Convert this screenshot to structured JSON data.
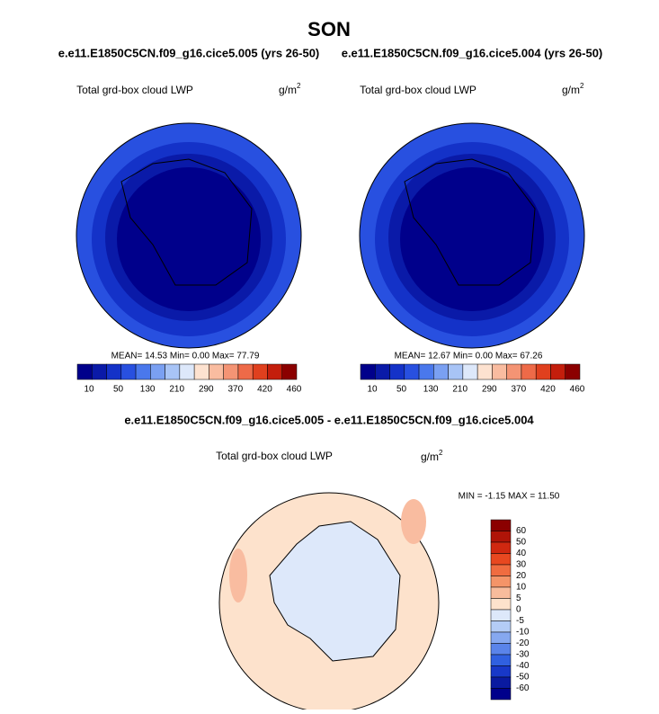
{
  "title": "SON",
  "panels": [
    {
      "case": "e.e11.E1850C5CN.f09_g16.cice5.005 (yrs 26-50)",
      "variable": "Total grd-box cloud LWP",
      "units": "g/m",
      "units_exponent": "2",
      "stats": "MEAN=  14.53  Min=   0.00  Max=  77.79",
      "colorbar_labels": [
        "10",
        "50",
        "130",
        "210",
        "290",
        "370",
        "420",
        "460"
      ]
    },
    {
      "case": "e.e11.E1850C5CN.f09_g16.cice5.004 (yrs 26-50)",
      "variable": "Total grd-box cloud LWP",
      "units": "g/m",
      "units_exponent": "2",
      "stats": "MEAN=  12.67  Min=   0.00  Max=  67.26",
      "colorbar_labels": [
        "10",
        "50",
        "130",
        "210",
        "290",
        "370",
        "420",
        "460"
      ]
    }
  ],
  "colorbar_colors": [
    "#00008b",
    "#0a1aa8",
    "#1432c8",
    "#2850e0",
    "#4a78ec",
    "#7aa0f2",
    "#a8c4f6",
    "#dde8fa",
    "#fde2d0",
    "#f9bca0",
    "#f49474",
    "#ee6a48",
    "#e0401e",
    "#c41e0c",
    "#8b0000"
  ],
  "difference": {
    "title": "e.e11.E1850C5CN.f09_g16.cice5.005 - e.e11.E1850C5CN.f09_g16.cice5.004",
    "variable": "Total grd-box cloud LWP",
    "units": "g/m",
    "units_exponent": "2",
    "stats": "MIN =  -1.15 MAX =  11.50",
    "colorbar_labels": [
      "60",
      "50",
      "40",
      "30",
      "20",
      "10",
      "5",
      "0",
      "-5",
      "-10",
      "-20",
      "-30",
      "-40",
      "-50",
      "-60"
    ],
    "colorbar_colors": [
      "#8b0000",
      "#b01408",
      "#d02810",
      "#e84820",
      "#f06c40",
      "#f49468",
      "#f8bc9c",
      "#fde2cc",
      "#dde8fa",
      "#b4ccf6",
      "#86a8f0",
      "#5a84ea",
      "#3060e0",
      "#1838c8",
      "#0a1aa0",
      "#00008b"
    ]
  }
}
